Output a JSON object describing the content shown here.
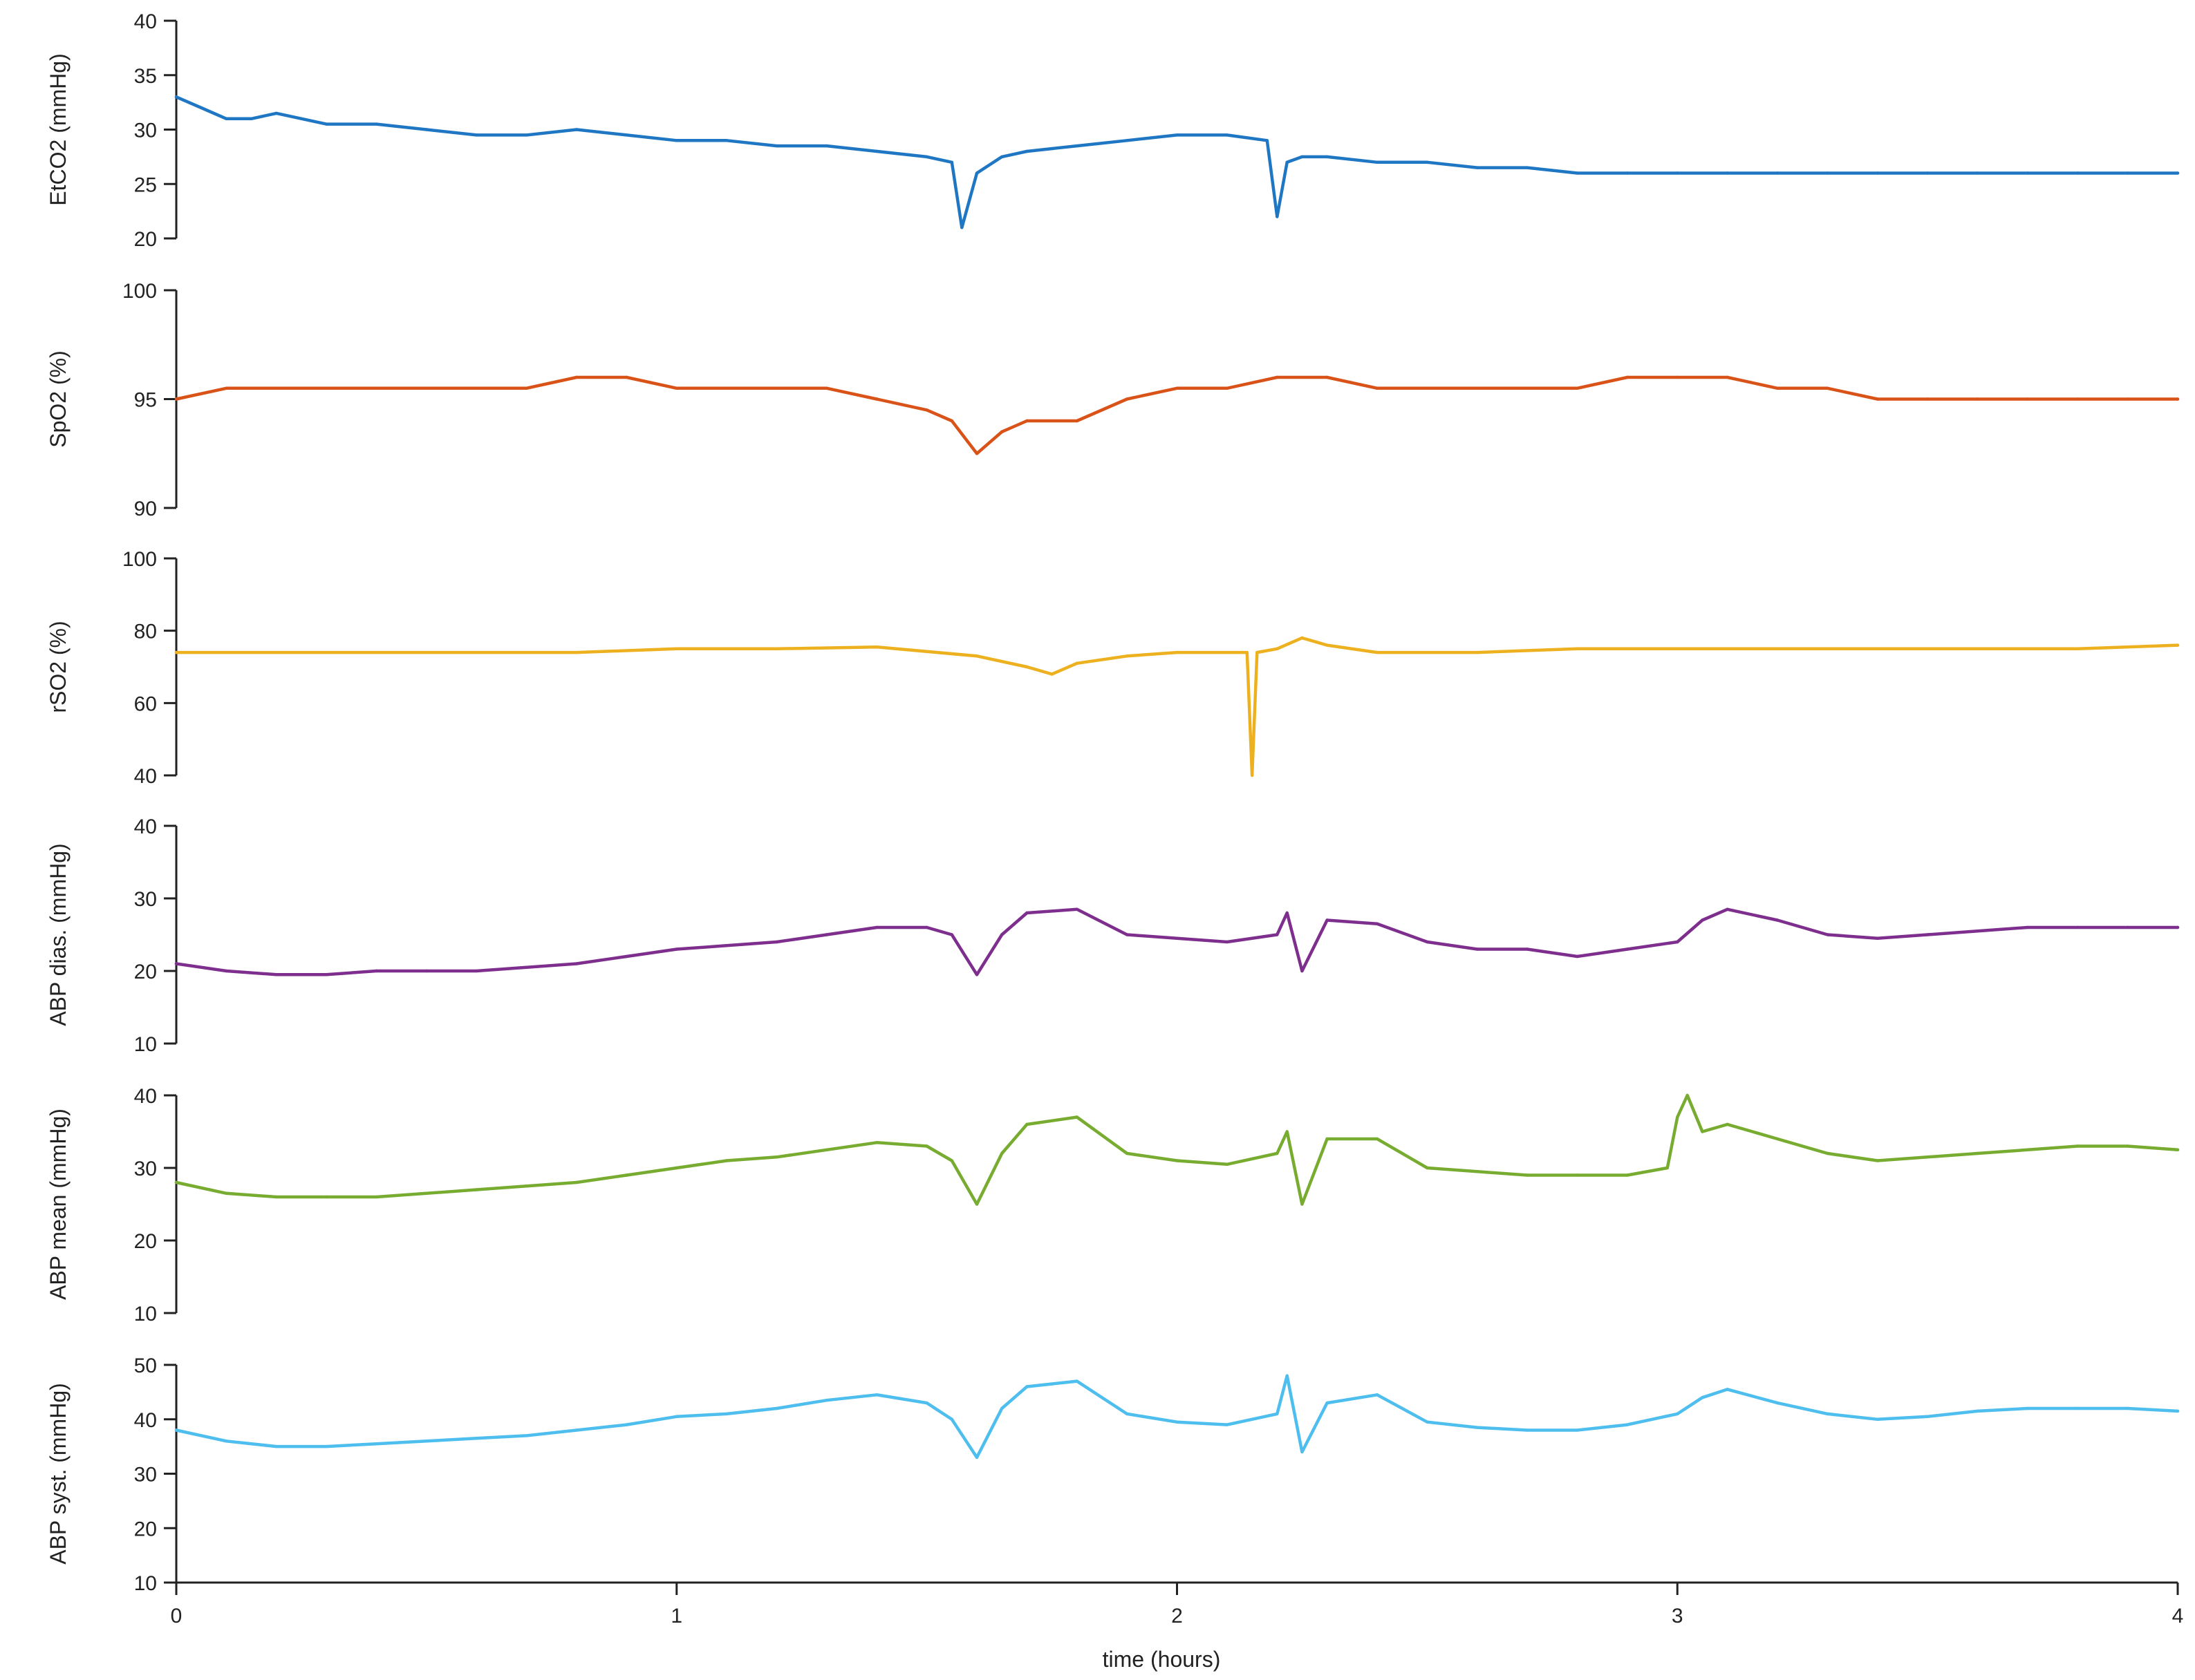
{
  "chart_data": {
    "type": "line",
    "layout": "stacked-panels-shared-x",
    "xlabel": "time (hours)",
    "xlim": [
      0,
      4
    ],
    "xticks": [
      0,
      1,
      2,
      3,
      4
    ],
    "grid": false,
    "legend": "none",
    "panels": [
      {
        "name": "EtCO2",
        "ylabel": "EtCO2 (mmHg)",
        "ylim": [
          20,
          40
        ],
        "yticks": [
          20,
          25,
          30,
          35,
          40
        ],
        "color": "#1f77c4",
        "x": [
          0,
          0.05,
          0.1,
          0.15,
          0.2,
          0.3,
          0.4,
          0.5,
          0.6,
          0.7,
          0.8,
          0.9,
          1.0,
          1.1,
          1.2,
          1.3,
          1.4,
          1.5,
          1.55,
          1.57,
          1.6,
          1.65,
          1.7,
          1.8,
          1.9,
          2.0,
          2.1,
          2.18,
          2.2,
          2.22,
          2.25,
          2.3,
          2.4,
          2.5,
          2.6,
          2.7,
          2.8,
          2.9,
          3.0,
          3.1,
          3.2,
          3.3,
          3.4,
          3.5,
          3.6,
          3.7,
          3.8,
          3.9,
          4.0
        ],
        "values": [
          33,
          32,
          31,
          31,
          31.5,
          30.5,
          30.5,
          30,
          29.5,
          29.5,
          30,
          29.5,
          29,
          29,
          28.5,
          28.5,
          28,
          27.5,
          27,
          21,
          26,
          27.5,
          28,
          28.5,
          29,
          29.5,
          29.5,
          29,
          22,
          27,
          27.5,
          27.5,
          27,
          27,
          26.5,
          26.5,
          26,
          26,
          26,
          26,
          26,
          26,
          26,
          26,
          26,
          26,
          26,
          26,
          26
        ]
      },
      {
        "name": "SpO2",
        "ylabel": "SpO2 (%)",
        "ylim": [
          90,
          100
        ],
        "yticks": [
          90,
          95,
          100
        ],
        "color": "#d95319",
        "x": [
          0,
          0.1,
          0.2,
          0.3,
          0.4,
          0.5,
          0.6,
          0.7,
          0.8,
          0.9,
          1.0,
          1.1,
          1.2,
          1.3,
          1.4,
          1.5,
          1.55,
          1.6,
          1.65,
          1.7,
          1.8,
          1.9,
          2.0,
          2.1,
          2.2,
          2.3,
          2.4,
          2.5,
          2.6,
          2.7,
          2.8,
          2.9,
          3.0,
          3.1,
          3.2,
          3.3,
          3.4,
          3.5,
          3.6,
          3.7,
          3.8,
          3.9,
          4.0
        ],
        "values": [
          95,
          95.5,
          95.5,
          95.5,
          95.5,
          95.5,
          95.5,
          95.5,
          96,
          96,
          95.5,
          95.5,
          95.5,
          95.5,
          95,
          94.5,
          94,
          92.5,
          93.5,
          94,
          94,
          95,
          95.5,
          95.5,
          96,
          96,
          95.5,
          95.5,
          95.5,
          95.5,
          95.5,
          96,
          96,
          96,
          95.5,
          95.5,
          95,
          95,
          95,
          95,
          95,
          95,
          95
        ]
      },
      {
        "name": "rSO2",
        "ylabel": "rSO2 (%)",
        "ylim": [
          40,
          100
        ],
        "yticks": [
          40,
          60,
          80,
          100
        ],
        "color": "#edb120",
        "x": [
          0,
          0.2,
          0.4,
          0.6,
          0.8,
          1.0,
          1.2,
          1.4,
          1.6,
          1.7,
          1.75,
          1.8,
          1.9,
          2.0,
          2.1,
          2.14,
          2.15,
          2.16,
          2.2,
          2.25,
          2.3,
          2.4,
          2.6,
          2.8,
          3.0,
          3.2,
          3.4,
          3.6,
          3.8,
          4.0
        ],
        "values": [
          74,
          74,
          74,
          74,
          74,
          75,
          75,
          75.5,
          73,
          70,
          68,
          71,
          73,
          74,
          74,
          74,
          40,
          74,
          75,
          78,
          76,
          74,
          74,
          75,
          75,
          75,
          75,
          75,
          75,
          76
        ]
      },
      {
        "name": "ABP dias.",
        "ylabel": "ABP dias. (mmHg)",
        "ylim": [
          10,
          40
        ],
        "yticks": [
          10,
          20,
          30,
          40
        ],
        "color": "#7e2f8e",
        "x": [
          0,
          0.1,
          0.2,
          0.3,
          0.4,
          0.5,
          0.6,
          0.7,
          0.8,
          0.9,
          1.0,
          1.1,
          1.2,
          1.3,
          1.4,
          1.5,
          1.55,
          1.6,
          1.65,
          1.7,
          1.8,
          1.9,
          2.0,
          2.1,
          2.2,
          2.22,
          2.25,
          2.3,
          2.4,
          2.5,
          2.6,
          2.7,
          2.8,
          2.9,
          3.0,
          3.05,
          3.1,
          3.2,
          3.3,
          3.4,
          3.5,
          3.6,
          3.7,
          3.8,
          3.9,
          4.0
        ],
        "values": [
          21,
          20,
          19.5,
          19.5,
          20,
          20,
          20,
          20.5,
          21,
          22,
          23,
          23.5,
          24,
          25,
          26,
          26,
          25,
          19.5,
          25,
          28,
          28.5,
          25,
          24.5,
          24,
          25,
          28,
          20,
          27,
          26.5,
          24,
          23,
          23,
          22,
          23,
          24,
          27,
          28.5,
          27,
          25,
          24.5,
          25,
          25.5,
          26,
          26,
          26,
          26
        ]
      },
      {
        "name": "ABP mean",
        "ylabel": "ABP mean (mmHg)",
        "ylim": [
          10,
          40
        ],
        "yticks": [
          10,
          20,
          30,
          40
        ],
        "color": "#77ac30",
        "x": [
          0,
          0.1,
          0.2,
          0.3,
          0.4,
          0.5,
          0.6,
          0.7,
          0.8,
          0.9,
          1.0,
          1.1,
          1.2,
          1.3,
          1.4,
          1.5,
          1.55,
          1.6,
          1.65,
          1.7,
          1.8,
          1.9,
          2.0,
          2.1,
          2.2,
          2.22,
          2.25,
          2.3,
          2.4,
          2.5,
          2.6,
          2.7,
          2.8,
          2.9,
          2.98,
          3.0,
          3.02,
          3.05,
          3.1,
          3.2,
          3.3,
          3.4,
          3.5,
          3.6,
          3.7,
          3.8,
          3.9,
          4.0
        ],
        "values": [
          28,
          26.5,
          26,
          26,
          26,
          26.5,
          27,
          27.5,
          28,
          29,
          30,
          31,
          31.5,
          32.5,
          33.5,
          33,
          31,
          25,
          32,
          36,
          37,
          32,
          31,
          30.5,
          32,
          35,
          25,
          34,
          34,
          30,
          29.5,
          29,
          29,
          29,
          30,
          37,
          40,
          35,
          36,
          34,
          32,
          31,
          31.5,
          32,
          32.5,
          33,
          33,
          32.5
        ]
      },
      {
        "name": "ABP syst.",
        "ylabel": "ABP syst. (mmHg)",
        "ylim": [
          10,
          50
        ],
        "yticks": [
          10,
          20,
          30,
          40,
          50
        ],
        "color": "#4dbeee",
        "x": [
          0,
          0.1,
          0.2,
          0.3,
          0.4,
          0.5,
          0.6,
          0.7,
          0.8,
          0.9,
          1.0,
          1.1,
          1.2,
          1.3,
          1.4,
          1.5,
          1.55,
          1.6,
          1.65,
          1.7,
          1.8,
          1.9,
          2.0,
          2.1,
          2.2,
          2.22,
          2.25,
          2.3,
          2.4,
          2.5,
          2.6,
          2.7,
          2.8,
          2.9,
          3.0,
          3.05,
          3.1,
          3.2,
          3.3,
          3.4,
          3.5,
          3.6,
          3.7,
          3.8,
          3.9,
          4.0
        ],
        "values": [
          38,
          36,
          35,
          35,
          35.5,
          36,
          36.5,
          37,
          38,
          39,
          40.5,
          41,
          42,
          43.5,
          44.5,
          43,
          40,
          33,
          42,
          46,
          47,
          41,
          39.5,
          39,
          41,
          48,
          34,
          43,
          44.5,
          39.5,
          38.5,
          38,
          38,
          39,
          41,
          44,
          45.5,
          43,
          41,
          40,
          40.5,
          41.5,
          42,
          42,
          42,
          41.5
        ]
      }
    ]
  }
}
